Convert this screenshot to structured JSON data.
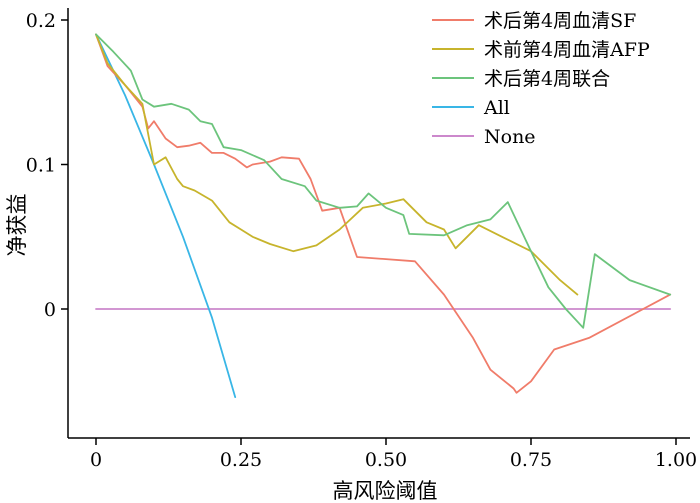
{
  "chart_data": {
    "type": "line",
    "xlabel": "高风险阈值",
    "ylabel": "净获益",
    "xlim": [
      -0.05,
      1.02
    ],
    "ylim": [
      -0.09,
      0.205
    ],
    "xticks": [
      0,
      0.25,
      0.5,
      0.75,
      1.0
    ],
    "xtick_labels": [
      "0",
      "0.25",
      "0.50",
      "0.75",
      "1.00"
    ],
    "yticks": [
      0,
      0.1,
      0.2
    ],
    "ytick_labels": [
      "0",
      "0.1",
      "0.2"
    ],
    "grid": false,
    "legend_position": "top-right",
    "series": [
      {
        "name": "术后第4周血清SF",
        "color": "#f07c6a",
        "x": [
          0.0,
          0.02,
          0.05,
          0.08,
          0.09,
          0.1,
          0.12,
          0.14,
          0.16,
          0.18,
          0.2,
          0.22,
          0.24,
          0.26,
          0.27,
          0.3,
          0.32,
          0.35,
          0.37,
          0.39,
          0.42,
          0.45,
          0.55,
          0.6,
          0.65,
          0.68,
          0.72,
          0.725,
          0.75,
          0.79,
          0.85,
          0.99
        ],
        "y": [
          0.19,
          0.168,
          0.155,
          0.14,
          0.125,
          0.13,
          0.118,
          0.112,
          0.113,
          0.115,
          0.108,
          0.108,
          0.104,
          0.098,
          0.1,
          0.102,
          0.105,
          0.104,
          0.09,
          0.068,
          0.07,
          0.036,
          0.033,
          0.01,
          -0.02,
          -0.042,
          -0.055,
          -0.058,
          -0.05,
          -0.028,
          -0.02,
          0.01
        ]
      },
      {
        "name": "术前第4周血清AFP",
        "color": "#c7b42c",
        "x": [
          0.0,
          0.02,
          0.05,
          0.08,
          0.1,
          0.12,
          0.14,
          0.15,
          0.17,
          0.2,
          0.23,
          0.25,
          0.27,
          0.3,
          0.34,
          0.38,
          0.42,
          0.46,
          0.5,
          0.53,
          0.57,
          0.6,
          0.62,
          0.66,
          0.7,
          0.75,
          0.8,
          0.83
        ],
        "y": [
          0.19,
          0.17,
          0.155,
          0.142,
          0.1,
          0.105,
          0.09,
          0.085,
          0.082,
          0.075,
          0.06,
          0.055,
          0.05,
          0.045,
          0.04,
          0.044,
          0.055,
          0.07,
          0.073,
          0.076,
          0.06,
          0.055,
          0.042,
          0.058,
          0.05,
          0.04,
          0.02,
          0.01
        ]
      },
      {
        "name": "术后第4周联合",
        "color": "#6cc47c",
        "x": [
          0.0,
          0.03,
          0.06,
          0.08,
          0.1,
          0.13,
          0.16,
          0.18,
          0.2,
          0.22,
          0.25,
          0.29,
          0.32,
          0.36,
          0.38,
          0.42,
          0.45,
          0.47,
          0.5,
          0.53,
          0.54,
          0.6,
          0.64,
          0.68,
          0.71,
          0.75,
          0.78,
          0.81,
          0.84,
          0.86,
          0.92,
          0.99
        ],
        "y": [
          0.19,
          0.178,
          0.165,
          0.145,
          0.14,
          0.142,
          0.138,
          0.13,
          0.128,
          0.112,
          0.11,
          0.103,
          0.09,
          0.085,
          0.075,
          0.07,
          0.071,
          0.08,
          0.07,
          0.065,
          0.052,
          0.051,
          0.058,
          0.062,
          0.074,
          0.04,
          0.015,
          0.0,
          -0.013,
          0.038,
          0.02,
          0.01
        ]
      },
      {
        "name": "All",
        "color": "#39b6e6",
        "x": [
          0.0,
          0.05,
          0.1,
          0.15,
          0.2,
          0.24
        ],
        "y": [
          0.19,
          0.148,
          0.1,
          0.05,
          -0.006,
          -0.061
        ]
      },
      {
        "name": "None",
        "color": "#cc88cc",
        "x": [
          0.0,
          0.99
        ],
        "y": [
          0.0,
          0.0
        ]
      }
    ]
  }
}
